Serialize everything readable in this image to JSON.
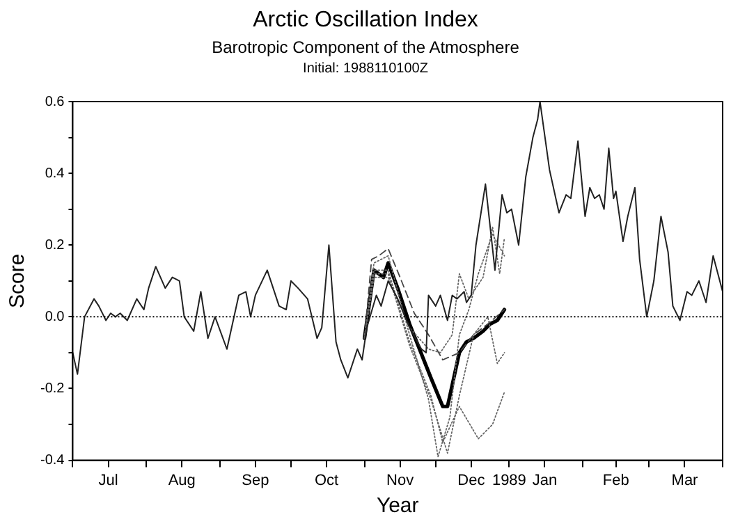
{
  "chart_data": {
    "type": "line",
    "title": "Arctic Oscillation Index",
    "subtitle": "Barotropic Component of the Atmosphere",
    "annotations": [
      "Initial: 1988110100Z"
    ],
    "xlabel": "Year",
    "ylabel": "Score",
    "xlim": [
      "1988-07-01",
      "1989-04-01"
    ],
    "xticks": [
      {
        "value": "1988-07-01",
        "label": null
      },
      {
        "value": "1988-07-16",
        "label": "Jul"
      },
      {
        "value": "1988-08-01",
        "label": null
      },
      {
        "value": "1988-08-16",
        "label": "Aug"
      },
      {
        "value": "1988-09-01",
        "label": null
      },
      {
        "value": "1988-09-16",
        "label": "Sep"
      },
      {
        "value": "1988-10-01",
        "label": null
      },
      {
        "value": "1988-10-16",
        "label": "Oct"
      },
      {
        "value": "1988-11-01",
        "label": null
      },
      {
        "value": "1988-11-16",
        "label": "Nov"
      },
      {
        "value": "1988-12-01",
        "label": null
      },
      {
        "value": "1988-12-16",
        "label": "Dec"
      },
      {
        "value": "1989-01-01",
        "label": "1989"
      },
      {
        "value": "1989-01-16",
        "label": "Jan"
      },
      {
        "value": "1989-02-01",
        "label": null
      },
      {
        "value": "1989-02-15",
        "label": "Feb"
      },
      {
        "value": "1989-03-01",
        "label": null
      },
      {
        "value": "1989-03-16",
        "label": "Mar"
      },
      {
        "value": "1989-04-01",
        "label": null
      }
    ],
    "ylim": [
      -0.4,
      0.6
    ],
    "yticks": [
      {
        "value": -0.4,
        "label": "-0.4"
      },
      {
        "value": -0.3,
        "label": null
      },
      {
        "value": -0.2,
        "label": "-0.2"
      },
      {
        "value": -0.1,
        "label": null
      },
      {
        "value": 0,
        "label": "0.0"
      },
      {
        "value": 0.1,
        "label": null
      },
      {
        "value": 0.2,
        "label": "0.2"
      },
      {
        "value": 0.3,
        "label": null
      },
      {
        "value": 0.4,
        "label": "0.4"
      },
      {
        "value": 0.5,
        "label": null
      },
      {
        "value": 0.6,
        "label": "0.6"
      }
    ],
    "ref_lines": [
      {
        "axis": "y",
        "value": 0,
        "label": null,
        "color": "#000000",
        "line_style": "dotted"
      }
    ],
    "legend": false,
    "series": [
      {
        "color": "#222222",
        "line_style": "solid",
        "x": [
          "1988-07-01",
          "1988-07-03",
          "1988-07-06",
          "1988-07-10",
          "1988-07-12",
          "1988-07-15",
          "1988-07-17",
          "1988-07-19",
          "1988-07-21",
          "1988-07-24",
          "1988-07-28",
          "1988-07-31",
          "1988-08-02",
          "1988-08-05",
          "1988-08-09",
          "1988-08-12",
          "1988-08-15",
          "1988-08-17",
          "1988-08-21",
          "1988-08-24",
          "1988-08-27",
          "1988-08-30",
          "1988-09-04",
          "1988-09-09",
          "1988-09-12",
          "1988-09-14",
          "1988-09-16",
          "1988-09-21",
          "1988-09-26",
          "1988-09-29",
          "1988-10-01",
          "1988-10-04",
          "1988-10-08",
          "1988-10-12",
          "1988-10-14",
          "1988-10-17",
          "1988-10-20",
          "1988-10-22",
          "1988-10-25",
          "1988-10-29",
          "1988-10-31",
          "1988-11-02",
          "1988-11-06",
          "1988-11-08",
          "1988-11-11",
          "1988-11-15",
          "1988-11-20",
          "1988-11-25",
          "1988-11-27",
          "1988-11-28",
          "1988-12-01",
          "1988-12-03",
          "1988-12-06",
          "1988-12-08",
          "1988-12-10",
          "1988-12-13",
          "1988-12-14",
          "1988-12-16",
          "1988-12-18",
          "1988-12-22",
          "1988-12-26",
          "1988-12-29",
          "1988-12-31",
          "1989-01-02",
          "1989-01-05",
          "1989-01-08",
          "1989-01-11",
          "1989-01-13",
          "1989-01-14",
          "1989-01-18",
          "1989-01-22",
          "1989-01-25",
          "1989-01-27",
          "1989-01-30",
          "1989-02-02",
          "1989-02-04",
          "1989-02-06",
          "1989-02-08",
          "1989-02-10",
          "1989-02-12",
          "1989-02-14",
          "1989-02-15",
          "1989-02-18",
          "1989-02-20",
          "1989-02-23",
          "1989-02-25",
          "1989-02-28",
          "1989-03-03",
          "1989-03-06",
          "1989-03-09",
          "1989-03-11",
          "1989-03-14",
          "1989-03-17",
          "1989-03-19",
          "1989-03-22",
          "1989-03-25",
          "1989-03-28",
          "1989-04-01"
        ],
        "values": [
          -0.1,
          -0.16,
          0.0,
          0.05,
          0.03,
          -0.01,
          0.01,
          0.0,
          0.01,
          -0.01,
          0.05,
          0.02,
          0.08,
          0.14,
          0.08,
          0.11,
          0.1,
          0.0,
          -0.04,
          0.07,
          -0.06,
          0.0,
          -0.09,
          0.06,
          0.07,
          0.0,
          0.06,
          0.13,
          0.03,
          0.02,
          0.1,
          0.08,
          0.05,
          -0.06,
          -0.03,
          0.2,
          -0.07,
          -0.12,
          -0.17,
          -0.09,
          -0.12,
          -0.03,
          0.06,
          0.03,
          0.1,
          0.05,
          -0.03,
          -0.09,
          -0.1,
          0.06,
          0.03,
          0.06,
          -0.01,
          0.06,
          0.05,
          0.07,
          0.04,
          0.06,
          0.2,
          0.37,
          0.13,
          0.34,
          0.29,
          0.3,
          0.2,
          0.39,
          0.5,
          0.55,
          0.6,
          0.41,
          0.29,
          0.34,
          0.33,
          0.49,
          0.28,
          0.36,
          0.33,
          0.34,
          0.3,
          0.47,
          0.33,
          0.35,
          0.21,
          0.28,
          0.36,
          0.16,
          0.0,
          0.1,
          0.28,
          0.18,
          0.03,
          -0.01,
          0.07,
          0.06,
          0.1,
          0.04,
          0.17,
          0.07
        ]
      },
      {
        "color": "#666666",
        "line_style": "dotted",
        "x": [
          "1988-11-01",
          "1988-11-05",
          "1988-11-11",
          "1988-11-20",
          "1988-11-28",
          "1988-12-02",
          "1988-12-07",
          "1988-12-11",
          "1988-12-15",
          "1988-12-19",
          "1988-12-25",
          "1988-12-30"
        ],
        "values": [
          -0.06,
          0.15,
          0.17,
          -0.05,
          -0.23,
          -0.39,
          -0.28,
          -0.05,
          0.02,
          0.12,
          0.23,
          0.17
        ]
      },
      {
        "color": "#666666",
        "line_style": "dotted",
        "x": [
          "1988-11-01",
          "1988-11-05",
          "1988-11-11",
          "1988-11-20",
          "1988-11-29",
          "1988-12-06",
          "1988-12-11",
          "1988-12-17",
          "1988-12-23",
          "1988-12-27",
          "1988-12-30"
        ],
        "values": [
          -0.06,
          0.12,
          0.12,
          -0.08,
          -0.23,
          -0.38,
          -0.22,
          -0.05,
          0.0,
          -0.13,
          -0.1
        ]
      },
      {
        "color": "#666666",
        "line_style": "dotted",
        "x": [
          "1988-11-01",
          "1988-11-05",
          "1988-11-11",
          "1988-11-20",
          "1988-11-29",
          "1988-12-04",
          "1988-12-11",
          "1988-12-19",
          "1988-12-25",
          "1988-12-30"
        ],
        "values": [
          -0.06,
          0.13,
          0.13,
          -0.07,
          -0.22,
          -0.35,
          -0.25,
          -0.34,
          -0.3,
          -0.21
        ]
      },
      {
        "color": "#666666",
        "line_style": "dotted",
        "x": [
          "1988-11-01",
          "1988-11-05",
          "1988-11-11",
          "1988-11-20",
          "1988-11-28",
          "1988-12-03",
          "1988-12-08",
          "1988-12-11",
          "1988-12-15",
          "1988-12-21",
          "1988-12-25",
          "1988-12-28",
          "1988-12-30"
        ],
        "values": [
          -0.06,
          0.11,
          0.11,
          -0.03,
          -0.09,
          -0.1,
          -0.05,
          0.12,
          0.05,
          0.11,
          0.25,
          0.12,
          0.22
        ]
      },
      {
        "color": "#444444",
        "line_style": "dashed",
        "x": [
          "1988-11-01",
          "1988-11-04",
          "1988-11-07",
          "1988-11-11",
          "1988-11-16",
          "1988-11-22",
          "1988-11-28",
          "1988-12-04",
          "1988-12-11",
          "1988-12-17",
          "1988-12-23",
          "1988-12-30"
        ],
        "values": [
          -0.06,
          0.16,
          0.17,
          0.19,
          0.11,
          0.01,
          -0.05,
          -0.12,
          -0.1,
          -0.05,
          -0.02,
          0.02
        ]
      },
      {
        "color": "#000000",
        "line_style": "solid",
        "x": [
          "1988-11-01",
          "1988-11-05",
          "1988-11-07",
          "1988-11-09",
          "1988-11-11",
          "1988-11-15",
          "1988-11-20",
          "1988-11-26",
          "1988-11-29",
          "1988-12-04",
          "1988-12-06",
          "1988-12-11",
          "1988-12-14",
          "1988-12-17",
          "1988-12-21",
          "1988-12-24",
          "1988-12-27",
          "1988-12-30"
        ],
        "values": [
          -0.06,
          0.13,
          0.12,
          0.11,
          0.15,
          0.08,
          -0.02,
          -0.12,
          -0.17,
          -0.25,
          -0.25,
          -0.1,
          -0.07,
          -0.06,
          -0.04,
          -0.02,
          -0.01,
          0.02
        ]
      }
    ]
  }
}
